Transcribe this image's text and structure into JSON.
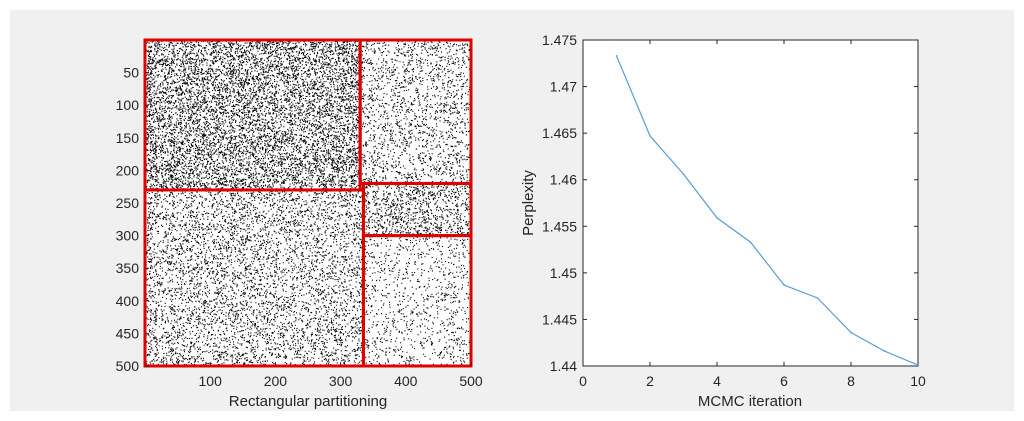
{
  "chart_data": [
    {
      "type": "heatmap",
      "xlabel": "Rectangular partitioning",
      "ylabel": "",
      "xlim": [
        0,
        500
      ],
      "ylim": [
        500,
        0
      ],
      "x_ticks": [
        100,
        200,
        300,
        400,
        500
      ],
      "y_ticks": [
        50,
        100,
        150,
        200,
        250,
        300,
        350,
        400,
        450,
        500
      ],
      "colormap": "binary (black dots on white)",
      "partition_color": "#e00000",
      "partition_blocks": [
        {
          "x": [
            0,
            330
          ],
          "y": [
            0,
            230
          ],
          "density": 0.62
        },
        {
          "x": [
            330,
            500
          ],
          "y": [
            0,
            220
          ],
          "density": 0.2
        },
        {
          "x": [
            0,
            335
          ],
          "y": [
            230,
            500
          ],
          "density": 0.38
        },
        {
          "x": [
            335,
            500
          ],
          "y": [
            220,
            300
          ],
          "density": 0.32
        },
        {
          "x": [
            335,
            500
          ],
          "y": [
            300,
            500
          ],
          "density": 0.13
        }
      ]
    },
    {
      "type": "line",
      "xlabel": "MCMC iteration",
      "ylabel": "Perplexity",
      "xlim": [
        0,
        10
      ],
      "ylim": [
        1.44,
        1.475
      ],
      "x_ticks": [
        0,
        2,
        4,
        6,
        8,
        10
      ],
      "y_ticks": [
        1.44,
        1.445,
        1.45,
        1.455,
        1.46,
        1.465,
        1.47,
        1.475
      ],
      "y_tick_labels": [
        "1.44",
        "1.445",
        "1.45",
        "1.455",
        "1.46",
        "1.465",
        "1.47",
        "1.475"
      ],
      "series": [
        {
          "color": "#5b9bd5",
          "x": [
            1,
            2,
            3,
            4,
            5,
            6,
            7,
            8,
            9,
            10
          ],
          "values": [
            1.4733,
            1.4647,
            1.4606,
            1.4559,
            1.4533,
            1.4487,
            1.4473,
            1.4436,
            1.4416,
            1.4401
          ]
        }
      ]
    }
  ]
}
